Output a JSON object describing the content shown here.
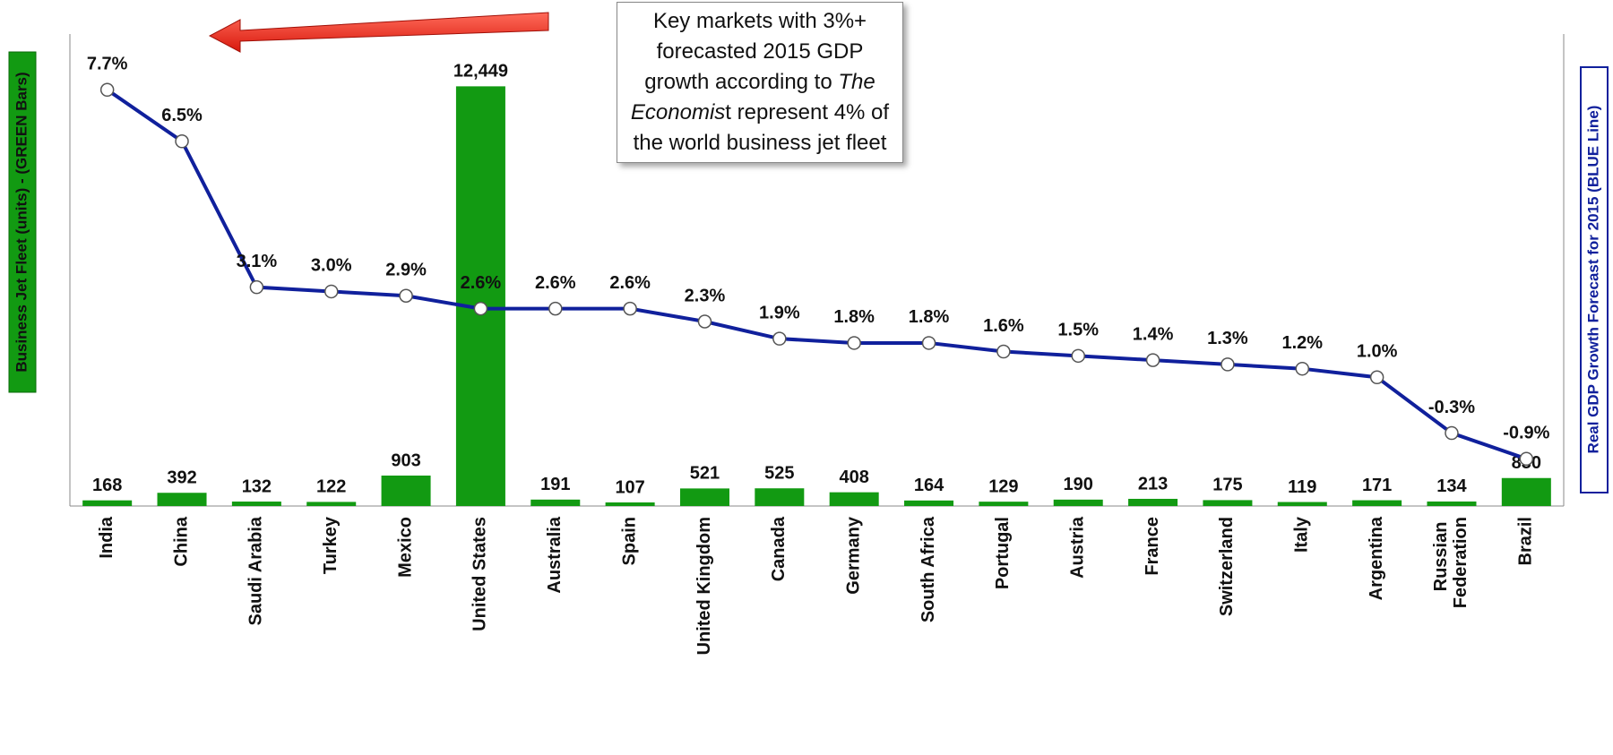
{
  "chart_data": {
    "type": "bar_line",
    "categories": [
      "India",
      "China",
      "Saudi Arabia",
      "Turkey",
      "Mexico",
      "United States",
      "Australia",
      "Spain",
      "United Kingdom",
      "Canada",
      "Germany",
      "South Africa",
      "Portugal",
      "Austria",
      "France",
      "Switzerland",
      "Italy",
      "Argentina",
      "Russian Federation",
      "Brazil"
    ],
    "series": [
      {
        "name": "Business Jet Fleet (units) - (GREEN Bars)",
        "type": "bar",
        "color": "#129a12",
        "values": [
          168,
          392,
          132,
          122,
          903,
          12449,
          191,
          107,
          521,
          525,
          408,
          164,
          129,
          190,
          213,
          175,
          119,
          171,
          134,
          830
        ],
        "value_labels": [
          "168",
          "392",
          "132",
          "122",
          "903",
          "12,449",
          "191",
          "107",
          "521",
          "525",
          "408",
          "164",
          "129",
          "190",
          "213",
          "175",
          "119",
          "171",
          "134",
          "830"
        ]
      },
      {
        "name": "Real GDP Growth Forecast for 2015 (BLUE Line)",
        "type": "line",
        "axis": "y2",
        "color": "#10209c",
        "values": [
          7.7,
          6.5,
          3.1,
          3.0,
          2.9,
          2.6,
          2.6,
          2.6,
          2.3,
          1.9,
          1.8,
          1.8,
          1.6,
          1.5,
          1.4,
          1.3,
          1.2,
          1.0,
          -0.3,
          -0.9
        ],
        "value_labels": [
          "7.7%",
          "6.5%",
          "3.1%",
          "3.0%",
          "2.9%",
          "2.6%",
          "2.6%",
          "2.6%",
          "2.3%",
          "1.9%",
          "1.8%",
          "1.8%",
          "1.6%",
          "1.5%",
          "1.4%",
          "1.3%",
          "1.2%",
          "1.0%",
          "-0.3%",
          "-0.9%"
        ]
      }
    ],
    "ylim": [
      0,
      14000
    ],
    "y2lim": [
      -2,
      9
    ],
    "annotation": [
      "Key markets with 3%+ forecasted 2015 GDP growth according to ",
      "The Economis",
      "t represent 4% of the world business jet fleet"
    ]
  }
}
